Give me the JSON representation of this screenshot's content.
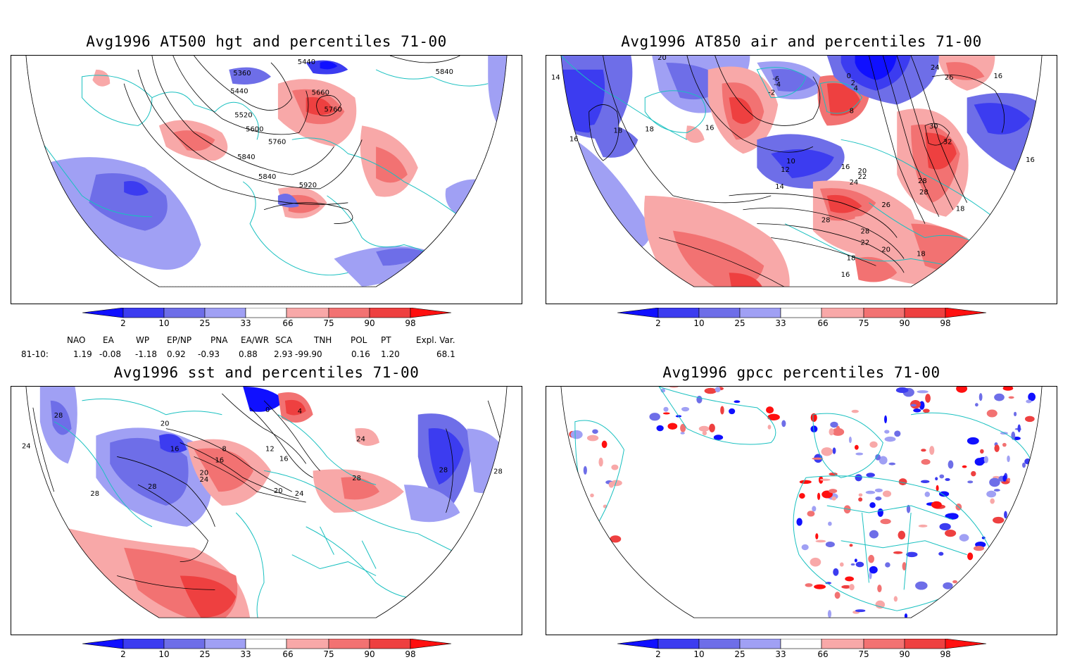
{
  "panels": [
    {
      "id": "p1",
      "title": "Avg1996 AT500 hgt and percentiles 71-00",
      "contour_labels": [
        "5440",
        "5360",
        "5440",
        "5660",
        "5760",
        "5520",
        "5600",
        "5760",
        "5840",
        "5840",
        "5920",
        "5840"
      ]
    },
    {
      "id": "p2",
      "title": "Avg1996 AT850 air and percentiles 71-00",
      "contour_labels": [
        "20",
        "14",
        "18",
        "16",
        "18",
        "16",
        "-6",
        "-4",
        "-2",
        "0",
        "2",
        "4",
        "8",
        "10",
        "12",
        "14",
        "16",
        "20",
        "22",
        "24",
        "26",
        "28",
        "28",
        "22",
        "20",
        "18",
        "16",
        "24",
        "26",
        "30",
        "32",
        "28",
        "28",
        "16",
        "18",
        "16",
        "18"
      ]
    },
    {
      "id": "p3",
      "title": "Avg1996 sst and percentiles 71-00",
      "contour_labels": [
        "28",
        "24",
        "28",
        "20",
        "16",
        "28",
        "8",
        "12",
        "16",
        "20",
        "24",
        "0",
        "4",
        "16",
        "20",
        "24",
        "28",
        "24",
        "28",
        "28"
      ]
    },
    {
      "id": "p4",
      "title": "Avg1996 gpcc percentiles 71-00",
      "contour_labels": []
    }
  ],
  "colorbar": {
    "labels": [
      "2",
      "10",
      "25",
      "33",
      "66",
      "75",
      "90",
      "98"
    ],
    "colors": {
      "c2": "#1010ff",
      "c10": "#3c3cf0",
      "c25": "#6e6ee8",
      "c33": "#a0a0f4",
      "c66": "#f8a8a8",
      "c75": "#f27272",
      "c90": "#ee4040",
      "c98": "#ff1010"
    }
  },
  "indices": {
    "headers": [
      "NAO",
      "EA",
      "WP",
      "EP/NP",
      "PNA",
      "EA/WR",
      "SCA",
      "TNH",
      "POL",
      "PT",
      "Expl. Var."
    ],
    "row_label": "81-10:",
    "values": [
      "1.19",
      "-0.08",
      "-1.18",
      "0.92",
      "-0.93",
      "0.88",
      "2.93",
      "-99.90",
      "0.16",
      "1.20",
      "68.1"
    ]
  },
  "colors": {
    "coast": "#19c0c0",
    "contour": "#000000",
    "blue_mid": "#6e6ee8",
    "red_mid": "#f27272"
  }
}
